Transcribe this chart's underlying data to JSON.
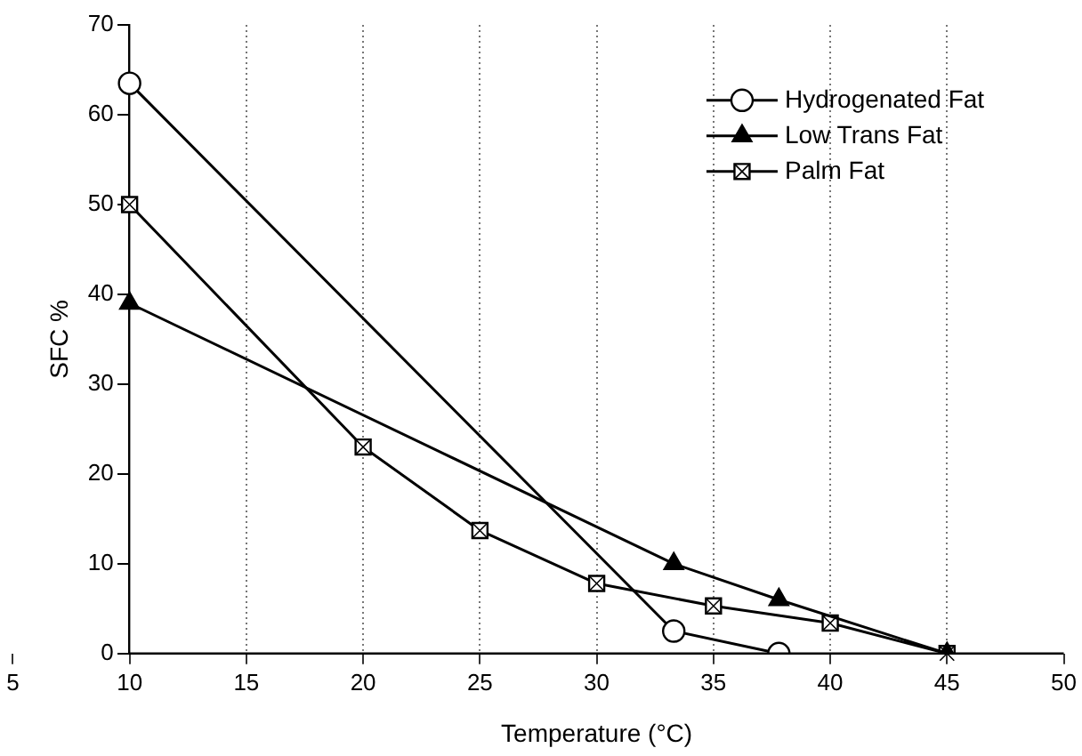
{
  "chart_data": {
    "type": "line",
    "xlabel": "Temperature (°C)",
    "ylabel": "SFC %",
    "xlim": [
      5,
      50
    ],
    "xticks": [
      5,
      10,
      15,
      20,
      25,
      30,
      35,
      40,
      45,
      50
    ],
    "ylim": [
      0,
      70
    ],
    "yticks": [
      0,
      10,
      20,
      30,
      40,
      50,
      60,
      70
    ],
    "grid": "x",
    "legend": "top right",
    "line_style": "solid",
    "series": [
      {
        "name": "Hydrogenated Fat",
        "color": "#000000",
        "marker": "circle",
        "x": [
          10,
          33.3,
          37.8
        ],
        "values": [
          63.5,
          2.5,
          0
        ]
      },
      {
        "name": "Low Trans Fat",
        "color": "#000000",
        "marker": "triangle",
        "x": [
          10,
          33.3,
          37.8,
          45
        ],
        "values": [
          39,
          10,
          6,
          0
        ]
      },
      {
        "name": "Palm Fat",
        "color": "#000000",
        "marker": "square",
        "x": [
          10,
          20,
          25,
          30,
          35,
          40,
          45
        ],
        "values": [
          50,
          23,
          13.7,
          7.8,
          5.3,
          3.4,
          0
        ]
      }
    ]
  }
}
